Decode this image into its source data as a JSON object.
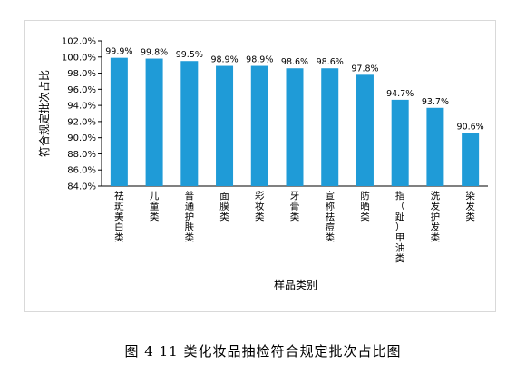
{
  "caption": "图 4   11 类化妆品抽检符合规定批次占比图",
  "chart_data": {
    "type": "bar",
    "ylabel": "符合规定批次占比",
    "xlabel": "样品类别",
    "ylim": [
      84.0,
      102.0
    ],
    "ytick_step": 2.0,
    "ytick_labels": [
      "84.0%",
      "86.0%",
      "88.0%",
      "90.0%",
      "92.0%",
      "94.0%",
      "96.0%",
      "98.0%",
      "100.0%",
      "102.0%"
    ],
    "bar_color": "#1f9bd7",
    "grid": false,
    "categories": [
      "祛斑美白类",
      "儿童类",
      "普通护肤类",
      "面膜类",
      "彩妆类",
      "牙膏类",
      "宣称祛痘类",
      "防晒类",
      "指（趾）甲油类",
      "洗发护发类",
      "染发类"
    ],
    "values": [
      99.9,
      99.8,
      99.5,
      98.9,
      98.9,
      98.6,
      98.6,
      97.8,
      94.7,
      93.7,
      90.6
    ],
    "data_labels": [
      "99.9%",
      "99.8%",
      "99.5%",
      "98.9%",
      "98.9%",
      "98.6%",
      "98.6%",
      "97.8%",
      "94.7%",
      "93.7%",
      "90.6%"
    ]
  }
}
